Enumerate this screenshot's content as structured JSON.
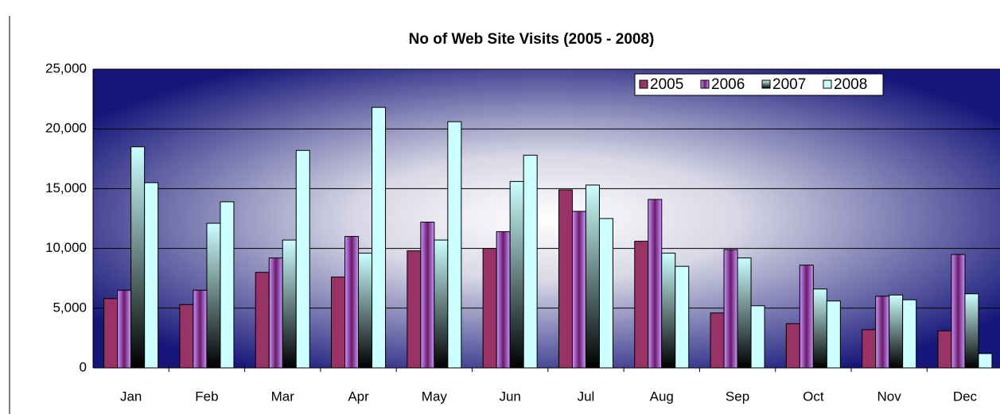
{
  "chart_data": {
    "type": "bar",
    "title": "No of Web Site Visits (2005 - 2008)",
    "categories": [
      "Jan",
      "Feb",
      "Mar",
      "Apr",
      "May",
      "Jun",
      "Jul",
      "Aug",
      "Sep",
      "Oct",
      "Nov",
      "Dec"
    ],
    "series": [
      {
        "name": "2005",
        "color": "#993366",
        "values": [
          5800,
          5300,
          8000,
          7600,
          9800,
          10000,
          14900,
          10600,
          4600,
          3700,
          3200,
          3100
        ]
      },
      {
        "name": "2006",
        "color": "#cc99ff",
        "values": [
          6500,
          6500,
          9200,
          11000,
          12200,
          11400,
          13100,
          14100,
          9900,
          8600,
          6000,
          9500
        ]
      },
      {
        "name": "2007",
        "color": "#ccffff",
        "values": [
          18500,
          12100,
          10700,
          9600,
          10700,
          15600,
          15300,
          9600,
          9200,
          6600,
          6100,
          6200
        ]
      },
      {
        "name": "2008",
        "color": "#ccffff",
        "values": [
          15500,
          13900,
          18200,
          21800,
          20600,
          17800,
          12500,
          8500,
          5200,
          5600,
          5700,
          1200
        ]
      }
    ],
    "ylim": [
      0,
      25000
    ],
    "yticks": [
      0,
      {
        "value": 5000,
        "label": "5,000"
      },
      {
        "value": 10000,
        "label": "10,000"
      },
      {
        "value": 15000,
        "label": "15,000"
      },
      {
        "value": 20000,
        "label": "20,000"
      },
      {
        "value": 25000,
        "label": "25,000"
      }
    ],
    "grid": true,
    "legend": "top-right"
  }
}
